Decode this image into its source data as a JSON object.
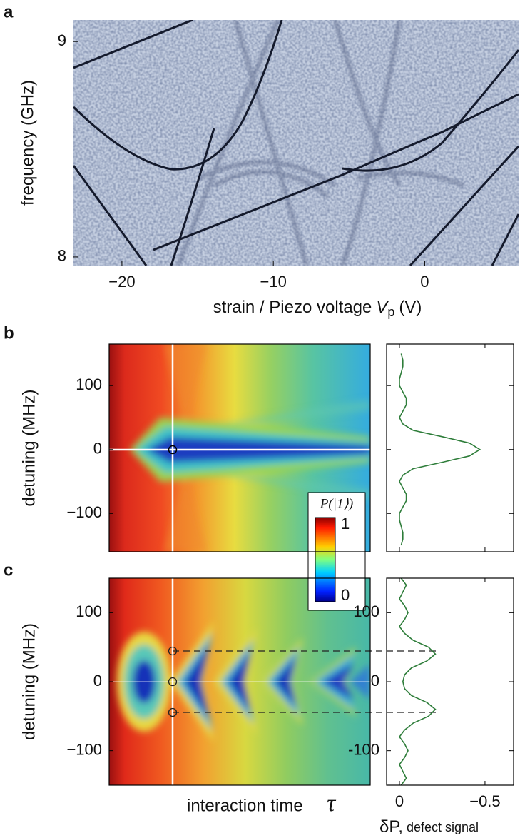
{
  "chart_data": [
    {
      "type": "heatmap",
      "panel_label": "a",
      "colormap": "gray-blue",
      "ylabel": "frequency (GHz)",
      "xlabel": "strain  / Piezo voltage",
      "xlabel_symbol": "V",
      "xlabel_subscript": "p",
      "xlabel_unit": "(V)",
      "xlim": [
        -23.2,
        6.2
      ],
      "ylim": [
        7.96,
        9.1
      ],
      "xticks": [
        {
          "value": -20,
          "label": "−20"
        },
        {
          "value": -10,
          "label": "−10"
        },
        0
      ],
      "yticks": [
        8,
        9
      ]
    },
    {
      "type": "heatmap",
      "panel_label": "b",
      "colormap": "jet",
      "ylabel": "detuning (MHz)",
      "ylim": [
        -160,
        165
      ],
      "yticks": [
        {
          "value": -100,
          "label": "−100"
        },
        0,
        100
      ]
    },
    {
      "type": "line",
      "orientation": "vertical",
      "x": [
        -150,
        -140,
        -130,
        -120,
        -110,
        -100,
        -90,
        -80,
        -70,
        -60,
        -50,
        -40,
        -30,
        -20,
        -10,
        0,
        10,
        20,
        30,
        40,
        50,
        60,
        70,
        80,
        90,
        100,
        110,
        120,
        130,
        140,
        150
      ],
      "series": [
        {
          "color": "#2e7d3a",
          "values": [
            -0.01,
            -0.02,
            -0.02,
            -0.01,
            0,
            0,
            -0.02,
            -0.04,
            -0.04,
            -0.02,
            0,
            -0.02,
            -0.08,
            -0.25,
            -0.41,
            -0.47,
            -0.41,
            -0.25,
            -0.08,
            -0.02,
            0,
            -0.02,
            -0.04,
            -0.04,
            -0.02,
            0,
            0,
            -0.01,
            -0.02,
            -0.02,
            -0.01
          ]
        }
      ],
      "xlim": [
        0.075,
        -0.667
      ],
      "ylim": [
        -160,
        165
      ],
      "xticks": [
        0,
        -0.5
      ],
      "yticks": [
        -100,
        0,
        100
      ],
      "tick_labels": false
    },
    {
      "type": "heatmap",
      "panel_label": "c",
      "colormap": "jet",
      "ylabel": "detuning (MHz)",
      "xlabel": "interaction time",
      "xlabel_symbol": "τ",
      "ylim": [
        -150,
        150
      ],
      "yticks": [
        {
          "value": -100,
          "label": "−100"
        },
        0,
        100
      ],
      "colorbar": {
        "label": "P(|1⟩)",
        "ticks": [
          0,
          1
        ]
      }
    },
    {
      "type": "line",
      "orientation": "vertical",
      "x": [
        -150,
        -140,
        -130,
        -120,
        -110,
        -100,
        -90,
        -80,
        -70,
        -60,
        -50,
        -40,
        -30,
        -20,
        -10,
        0,
        10,
        20,
        30,
        40,
        50,
        60,
        70,
        80,
        90,
        100,
        110,
        120,
        130,
        140,
        150
      ],
      "series": [
        {
          "color": "#2e7d3a",
          "values": [
            -0.01,
            -0.04,
            -0.02,
            0,
            -0.03,
            -0.05,
            -0.03,
            0,
            -0.03,
            -0.08,
            -0.17,
            -0.21,
            -0.16,
            -0.07,
            -0.03,
            -0.02,
            -0.03,
            -0.07,
            -0.16,
            -0.21,
            -0.17,
            -0.08,
            -0.03,
            0,
            -0.03,
            -0.05,
            -0.03,
            0,
            -0.02,
            -0.04,
            -0.01
          ]
        }
      ],
      "xlim": [
        0.075,
        -0.667
      ],
      "ylim": [
        -150,
        150
      ],
      "xticks": [
        0,
        {
          "value": -0.5,
          "label": "−0.5"
        }
      ],
      "yticks": [
        -100,
        0,
        100
      ],
      "tick_labels": true,
      "xlabel": "δP,",
      "xlabel_note": "defect signal"
    }
  ]
}
